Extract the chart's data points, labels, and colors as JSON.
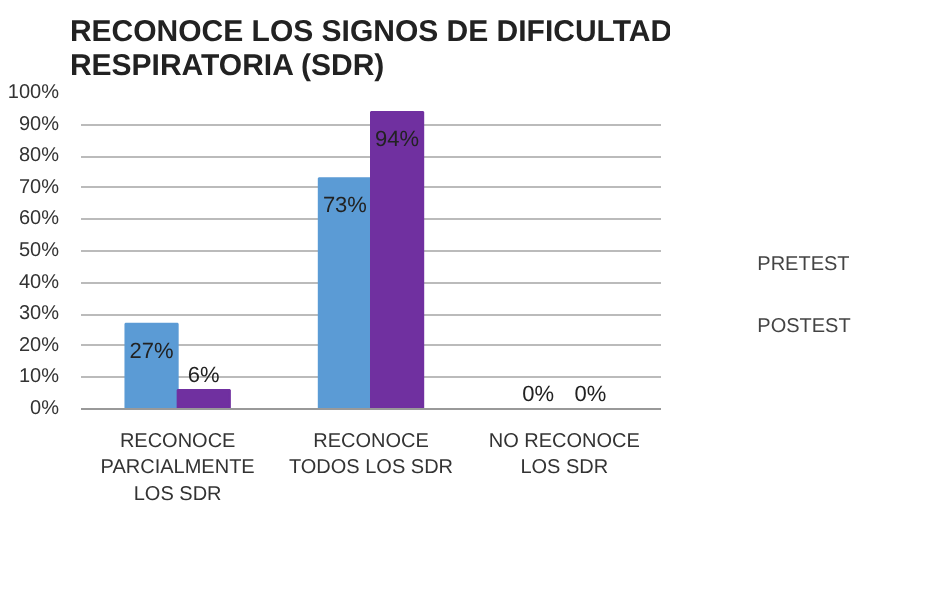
{
  "chart_data": {
    "type": "bar",
    "title": "RECONOCE LOS SIGNOS DE DIFICULTAD RESPIRATORIA (SDR)",
    "categories": [
      "RECONOCE PARCIALMENTE LOS SDR",
      "RECONOCE TODOS LOS SDR",
      "NO RECONOCE LOS SDR"
    ],
    "series": [
      {
        "name": "PRETEST",
        "color": "#5b9bd5",
        "values": [
          27,
          73,
          0
        ],
        "value_labels": [
          "27%",
          "73%",
          "0%"
        ]
      },
      {
        "name": "POSTEST",
        "color": "#7030a0",
        "values": [
          6,
          94,
          0
        ],
        "value_labels": [
          "6%",
          "94%",
          "0%"
        ]
      }
    ],
    "ylim": [
      0,
      100
    ],
    "yticks": [
      {
        "value": 0,
        "label": "0%"
      },
      {
        "value": 10,
        "label": "10%"
      },
      {
        "value": 20,
        "label": "20%"
      },
      {
        "value": 30,
        "label": "30%"
      },
      {
        "value": 40,
        "label": "40%"
      },
      {
        "value": 50,
        "label": "50%"
      },
      {
        "value": 60,
        "label": "60%"
      },
      {
        "value": 70,
        "label": "70%"
      },
      {
        "value": 80,
        "label": "80%"
      },
      {
        "value": 90,
        "label": "90%"
      },
      {
        "value": 100,
        "label": "100%"
      }
    ],
    "grid": "y",
    "legend": "right"
  }
}
